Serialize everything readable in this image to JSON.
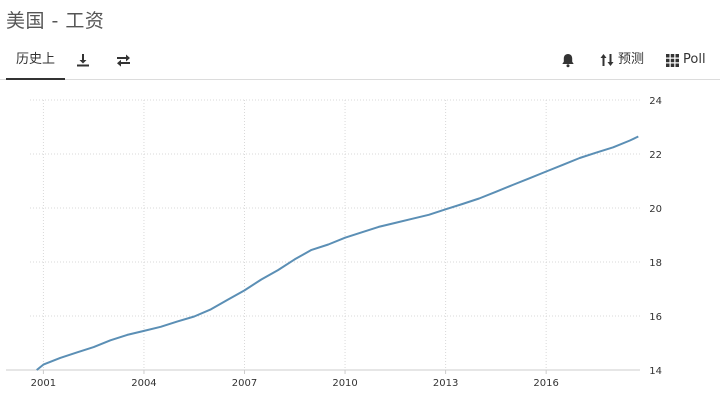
{
  "header": {
    "title": "美国 - 工资"
  },
  "toolbar": {
    "history_tab": "历史上",
    "download_icon": "download-icon",
    "compare_icon": "swap-icon",
    "alert_icon": "bell-icon",
    "forecast_label": "预测",
    "forecast_icon": "sort-arrows-icon",
    "poll_label": "Poll",
    "poll_icon": "grid-icon"
  },
  "colors": {
    "line": "#5b8fb5",
    "grid": "#d9d9d9",
    "axis": "#cccccc"
  },
  "chart_data": {
    "type": "line",
    "title": "",
    "xlabel": "",
    "ylabel": "",
    "x_ticks": [
      "2001",
      "2004",
      "2007",
      "2010",
      "2013",
      "2016"
    ],
    "y_ticks": [
      14,
      16,
      18,
      20,
      22,
      24
    ],
    "xlim": [
      2000.6,
      2018.8
    ],
    "ylim": [
      14,
      24
    ],
    "grid": true,
    "series": [
      {
        "name": "",
        "x": [
          2000.8,
          2001.0,
          2001.5,
          2002.0,
          2002.5,
          2003.0,
          2003.5,
          2004.0,
          2004.5,
          2005.0,
          2005.5,
          2006.0,
          2006.5,
          2007.0,
          2007.5,
          2008.0,
          2008.5,
          2009.0,
          2009.5,
          2010.0,
          2010.5,
          2011.0,
          2011.5,
          2012.0,
          2012.5,
          2013.0,
          2013.5,
          2014.0,
          2014.5,
          2015.0,
          2015.5,
          2016.0,
          2016.5,
          2017.0,
          2017.5,
          2018.0,
          2018.5,
          2018.75
        ],
        "values": [
          14.0,
          14.2,
          14.45,
          14.65,
          14.85,
          15.1,
          15.3,
          15.45,
          15.6,
          15.8,
          15.98,
          16.25,
          16.6,
          16.95,
          17.35,
          17.7,
          18.1,
          18.45,
          18.65,
          18.9,
          19.1,
          19.3,
          19.45,
          19.6,
          19.75,
          19.95,
          20.15,
          20.35,
          20.6,
          20.85,
          21.1,
          21.35,
          21.6,
          21.85,
          22.05,
          22.25,
          22.5,
          22.65
        ]
      }
    ]
  }
}
